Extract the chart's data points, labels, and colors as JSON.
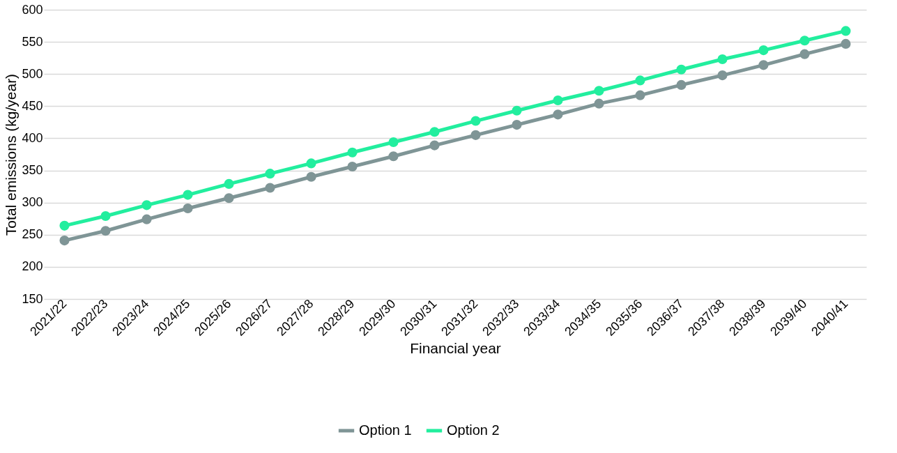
{
  "chart_data": {
    "type": "line",
    "xlabel": "Financial year",
    "ylabel": "Total emissions (kg/year)",
    "categories": [
      "2021/22",
      "2022/23",
      "2023/24",
      "2024/25",
      "2025/26",
      "2026/27",
      "2027/28",
      "2028/29",
      "2029/30",
      "2030/31",
      "2031/32",
      "2032/33",
      "2033/34",
      "2034/35",
      "2035/36",
      "2036/37",
      "2037/38",
      "2038/39",
      "2039/40",
      "2040/41"
    ],
    "series": [
      {
        "name": "Option 1",
        "color": "#7f9596",
        "values": [
          241,
          256,
          274,
          291,
          307,
          323,
          340,
          356,
          372,
          389,
          405,
          421,
          437,
          454,
          467,
          483,
          498,
          514,
          531,
          547
        ]
      },
      {
        "name": "Option 2",
        "color": "#22ee9e",
        "values": [
          264,
          279,
          296,
          312,
          329,
          345,
          361,
          378,
          394,
          410,
          427,
          443,
          459,
          474,
          490,
          507,
          523,
          537,
          552,
          567
        ]
      }
    ],
    "ylim": [
      150,
      600
    ],
    "yticks": [
      150,
      200,
      250,
      300,
      350,
      400,
      450,
      500,
      550,
      600
    ],
    "grid": "y",
    "legend": "bottom",
    "marker": "circle",
    "line_style": "solid"
  }
}
